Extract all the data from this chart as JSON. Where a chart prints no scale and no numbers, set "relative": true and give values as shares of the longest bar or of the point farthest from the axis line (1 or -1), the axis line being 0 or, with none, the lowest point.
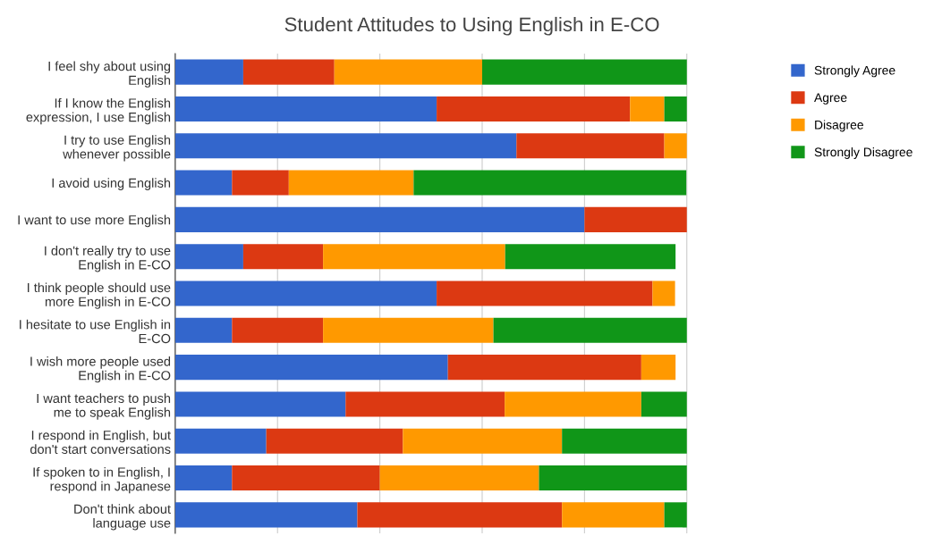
{
  "chart_data": {
    "type": "bar",
    "orientation": "horizontal",
    "stacked": true,
    "relative": true,
    "title": "Student Attitudes to Using English in E-CO",
    "categories": [
      "I feel shy about using\nEnglish",
      "If I know the English\nexpression, I use English",
      "I try to use English\nwhenever possible",
      "I avoid using English",
      "I want to use more English",
      "I don't really try to use\nEnglish in E-CO",
      "I think people should use\nmore English in E-CO",
      "I hesitate to use English in\nE-CO",
      "I wish more people used\nEnglish in E-CO",
      "I want teachers to push\nme to speak English",
      "I respond in English, but\ndon't start conversations",
      "If spoken to in English, I\nrespond in Japanese",
      "Don't think about\nlanguage use"
    ],
    "series": [
      {
        "name": "Strongly Agree",
        "color": "#3366cc",
        "values": [
          0.133,
          0.511,
          0.667,
          0.111,
          0.8,
          0.133,
          0.511,
          0.111,
          0.533,
          0.333,
          0.178,
          0.111,
          0.356
        ]
      },
      {
        "name": "Agree",
        "color": "#dc3912",
        "values": [
          0.178,
          0.378,
          0.289,
          0.111,
          0.2,
          0.156,
          0.422,
          0.178,
          0.378,
          0.311,
          0.267,
          0.289,
          0.4
        ]
      },
      {
        "name": "Disagree",
        "color": "#ff9900",
        "values": [
          0.289,
          0.067,
          0.044,
          0.244,
          0,
          0.356,
          0.044,
          0.333,
          0.067,
          0.267,
          0.311,
          0.311,
          0.2
        ]
      },
      {
        "name": "Strongly Disagree",
        "color": "#109618",
        "values": [
          0.4,
          0.044,
          0,
          0.533,
          0,
          0.333,
          0,
          0.378,
          0,
          0.089,
          0.244,
          0.289,
          0.044
        ]
      }
    ],
    "grid": "x",
    "legend": "top right"
  }
}
